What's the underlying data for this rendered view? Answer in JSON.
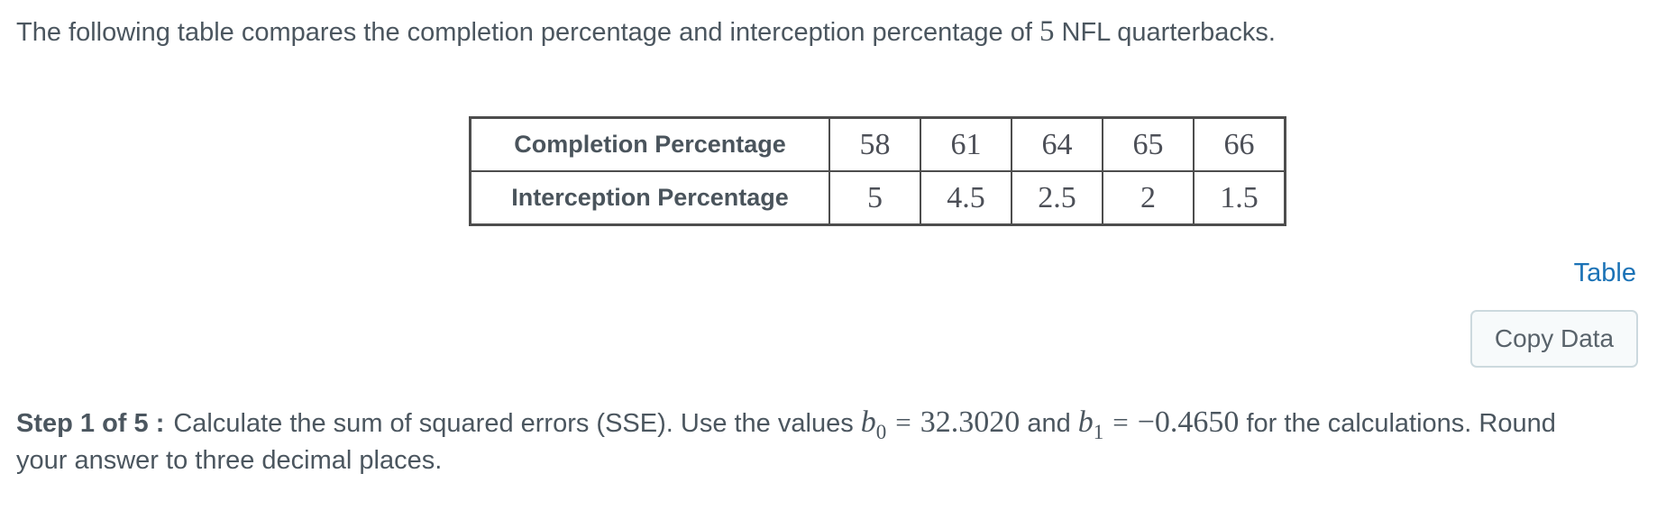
{
  "colors": {
    "text": "#4b565f",
    "link_blue": "#1b72b6",
    "table_border": "#4d4d4d",
    "button_bg": "#f7fafb",
    "button_border": "#ccd9de",
    "button_text": "#59636b"
  },
  "intro": {
    "text_before": "The following table compares the completion percentage and interception percentage of",
    "count": "5",
    "text_after": "NFL quarterbacks."
  },
  "table": {
    "rows": [
      {
        "label": "Completion Percentage",
        "values": [
          "58",
          "61",
          "64",
          "65",
          "66"
        ]
      },
      {
        "label": "Interception Percentage",
        "values": [
          "5",
          "4.5",
          "2.5",
          "2",
          "1.5"
        ]
      }
    ]
  },
  "actions": {
    "table_link": "Table",
    "copy_button": "Copy Data"
  },
  "step": {
    "label": "Step 1 of 5 :",
    "text_before": "Calculate the sum of squared errors (SSE). Use the values",
    "b0_symbol": "b",
    "b0_sub": "0",
    "b0_equals": "=",
    "b0_value": "32.3020",
    "conjunction": "and",
    "b1_symbol": "b",
    "b1_sub": "1",
    "b1_equals": "=",
    "b1_value": "−0.4650",
    "text_after_line1": "for the calculations. Round",
    "text_line2": "your answer to three decimal places."
  }
}
